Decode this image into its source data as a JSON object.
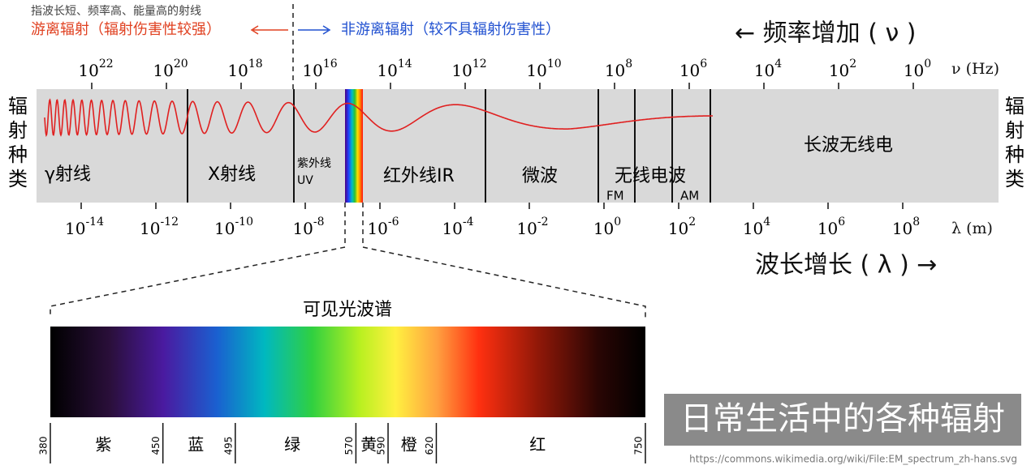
{
  "header": {
    "note": "指波长短、频率高、能量高的射线",
    "ionizing": "游离辐射（辐射伤害性较强）",
    "non_ionizing": "非游离辐射（较不具辐射伤害性）",
    "freq_title": "← 频率增加 ( ν )",
    "freq_unit": "ν (Hz)"
  },
  "freq_ticks": [
    {
      "base": "10",
      "exp": "22"
    },
    {
      "base": "10",
      "exp": "20"
    },
    {
      "base": "10",
      "exp": "18"
    },
    {
      "base": "10",
      "exp": "16"
    },
    {
      "base": "10",
      "exp": "14"
    },
    {
      "base": "10",
      "exp": "12"
    },
    {
      "base": "10",
      "exp": "10"
    },
    {
      "base": "10",
      "exp": "8"
    },
    {
      "base": "10",
      "exp": "6"
    },
    {
      "base": "10",
      "exp": "4"
    },
    {
      "base": "10",
      "exp": "2"
    },
    {
      "base": "10",
      "exp": "0"
    }
  ],
  "side_label": "辐射种类",
  "bands": {
    "gamma": "γ射线",
    "xray": "X射线",
    "uv": "紫外线",
    "uv_en": "UV",
    "ir": "红外线IR",
    "microwave": "微波",
    "radio": "无线电波",
    "fm": "FM",
    "am": "AM",
    "longwave": "长波无线电"
  },
  "wave_ticks": [
    {
      "base": "10",
      "exp": "-14"
    },
    {
      "base": "10",
      "exp": "-12"
    },
    {
      "base": "10",
      "exp": "-10"
    },
    {
      "base": "10",
      "exp": "-8"
    },
    {
      "base": "10",
      "exp": "-6"
    },
    {
      "base": "10",
      "exp": "-4"
    },
    {
      "base": "10",
      "exp": "-2"
    },
    {
      "base": "10",
      "exp": "0"
    },
    {
      "base": "10",
      "exp": "2"
    },
    {
      "base": "10",
      "exp": "4"
    },
    {
      "base": "10",
      "exp": "6"
    },
    {
      "base": "10",
      "exp": "8"
    }
  ],
  "wave_unit": "λ (m)",
  "wave_title": "波长增长 ( λ ) →",
  "visible": {
    "title": "可见光波谱",
    "ticks": [
      380,
      450,
      495,
      570,
      590,
      620,
      750
    ],
    "colors": [
      "紫",
      "蓝",
      "绿",
      "黄",
      "橙",
      "红"
    ]
  },
  "caption": "日常生活中的各种辐射",
  "source": "https://commons.wikimedia.org/wiki/File:EM_spectrum_zh-hans.svg"
}
